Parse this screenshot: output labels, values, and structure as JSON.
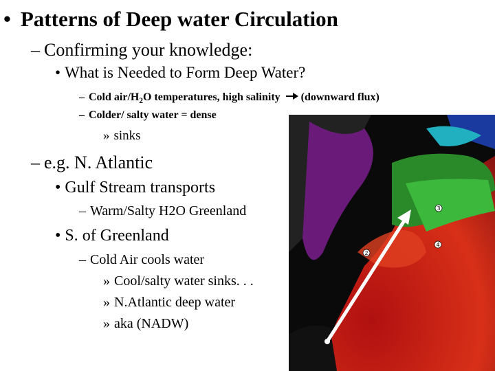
{
  "title": {
    "marker": "•",
    "text": "Patterns of Deep water Circulation"
  },
  "outline": [
    {
      "marker": "–",
      "parts": [
        "Confirming your knowledge:"
      ]
    },
    {
      "marker": "•",
      "parts": [
        "What is Needed to Form Deep Water?"
      ]
    },
    {
      "marker": "–",
      "parts": [
        "Cold air/H",
        "2",
        "O temperatures, high salinity",
        "(downward flux)"
      ]
    },
    {
      "marker": "–",
      "parts": [
        "Colder/ salty water = dense"
      ]
    },
    {
      "marker": "»",
      "parts": [
        "sinks"
      ]
    },
    {
      "marker": "–",
      "parts": [
        "e.g.  N. Atlantic"
      ]
    },
    {
      "marker": "•",
      "parts": [
        "Gulf Stream transports"
      ]
    },
    {
      "marker": "–",
      "parts": [
        "Warm/Salty H2O Greenland"
      ]
    },
    {
      "marker": "•",
      "parts": [
        "S. of Greenland"
      ]
    },
    {
      "marker": "–",
      "parts": [
        "Cold Air cools water"
      ]
    },
    {
      "marker": "»",
      "parts": [
        "Cool/salty water sinks. . ."
      ]
    },
    {
      "marker": "»",
      "parts": [
        "N.Atlantic deep water"
      ]
    },
    {
      "marker": "»",
      "parts": [
        "aka (NADW)"
      ]
    }
  ],
  "image_labels": [
    "3",
    "4",
    "2"
  ]
}
